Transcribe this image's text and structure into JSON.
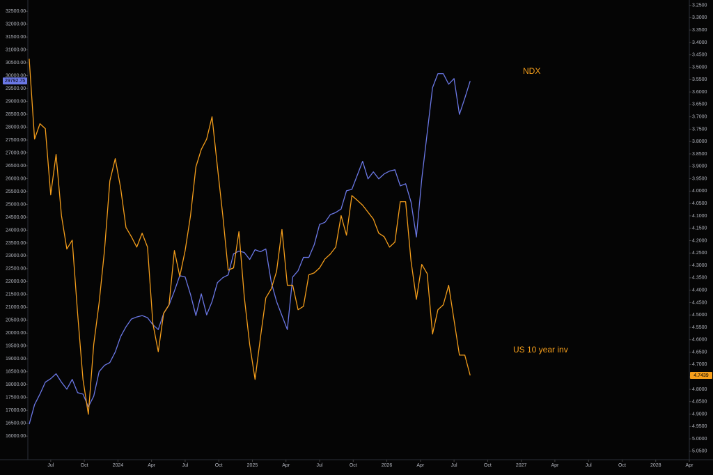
{
  "chart_data": {
    "type": "line",
    "x": [
      2023.34,
      2023.38,
      2023.42,
      2023.46,
      2023.5,
      2023.54,
      2023.58,
      2023.62,
      2023.66,
      2023.7,
      2023.74,
      2023.78,
      2023.82,
      2023.86,
      2023.9,
      2023.94,
      2023.98,
      2024.02,
      2024.06,
      2024.1,
      2024.14,
      2024.18,
      2024.22,
      2024.26,
      2024.3,
      2024.34,
      2024.38,
      2024.42,
      2024.46,
      2024.5,
      2024.54,
      2024.58,
      2024.62,
      2024.66,
      2024.7,
      2024.74,
      2024.78,
      2024.82,
      2024.86,
      2024.9,
      2024.94,
      2024.98,
      2025.02,
      2025.06,
      2025.1,
      2025.14,
      2025.18,
      2025.22,
      2025.26,
      2025.3,
      2025.34,
      2025.38,
      2025.42,
      2025.46,
      2025.5,
      2025.54,
      2025.58,
      2025.62,
      2025.66,
      2025.7,
      2025.74,
      2025.78,
      2025.82,
      2025.86,
      2025.9,
      2025.94,
      2025.98,
      2026.02,
      2026.06,
      2026.1,
      2026.14,
      2026.18,
      2026.22,
      2026.26,
      2026.3,
      2026.34,
      2026.38,
      2026.42,
      2026.46,
      2026.5,
      2026.54,
      2026.58,
      2026.62
    ],
    "series": [
      {
        "name": "NDX",
        "color": "#6b78e6",
        "axis": "y",
        "values": [
          16462,
          17224,
          17632,
          18095,
          18231,
          18422,
          18095,
          17823,
          18204,
          17687,
          17632,
          17142,
          17551,
          18504,
          18749,
          18858,
          19266,
          19865,
          20246,
          20546,
          20628,
          20682,
          20600,
          20328,
          20138,
          20764,
          21091,
          21635,
          22234,
          22180,
          21499,
          20682,
          21526,
          20709,
          21227,
          21962,
          22153,
          22262,
          23078,
          23187,
          23133,
          22861,
          23242,
          23160,
          23269,
          21989,
          21227,
          20682,
          20138,
          22180,
          22425,
          22942,
          22942,
          23432,
          24222,
          24304,
          24603,
          24685,
          24821,
          25529,
          25584,
          26128,
          26673,
          25992,
          26264,
          25992,
          26183,
          26292,
          26346,
          25720,
          25801,
          25093,
          23732,
          25992,
          27762,
          29532,
          30077,
          30077,
          29668,
          29886,
          28497,
          29123,
          29792.75
        ]
      },
      {
        "name": "US 10 year inv",
        "color": "#f59e1b",
        "axis": "y2",
        "values": [
          3.466,
          3.79,
          3.728,
          3.748,
          4.015,
          3.852,
          4.099,
          4.234,
          4.198,
          4.493,
          4.76,
          4.901,
          4.619,
          4.451,
          4.24,
          3.959,
          3.869,
          3.987,
          4.147,
          4.184,
          4.226,
          4.17,
          4.226,
          4.535,
          4.648,
          4.493,
          4.459,
          4.24,
          4.344,
          4.24,
          4.099,
          3.902,
          3.832,
          3.79,
          3.7,
          3.902,
          4.099,
          4.319,
          4.31,
          4.164,
          4.428,
          4.619,
          4.76,
          4.591,
          4.431,
          4.395,
          4.324,
          4.155,
          4.38,
          4.38,
          4.479,
          4.465,
          4.338,
          4.33,
          4.31,
          4.274,
          4.254,
          4.226,
          4.099,
          4.178,
          4.018,
          4.037,
          4.057,
          4.085,
          4.113,
          4.17,
          4.184,
          4.226,
          4.206,
          4.043,
          4.043,
          4.282,
          4.437,
          4.296,
          4.333,
          4.577,
          4.479,
          4.459,
          4.38,
          4.521,
          4.662,
          4.662,
          4.7439
        ]
      }
    ],
    "xlim": [
      2023.33,
      2028.25
    ],
    "xticks": [
      {
        "value": 2023.5,
        "label": "Jul"
      },
      {
        "value": 2023.75,
        "label": "Oct"
      },
      2024,
      {
        "value": 2024.25,
        "label": "Apr"
      },
      {
        "value": 2024.5,
        "label": "Jul"
      },
      {
        "value": 2024.75,
        "label": "Oct"
      },
      2025,
      {
        "value": 2025.25,
        "label": "Apr"
      },
      {
        "value": 2025.5,
        "label": "Jul"
      },
      {
        "value": 2025.75,
        "label": "Oct"
      },
      2026,
      {
        "value": 2026.25,
        "label": "Apr"
      },
      {
        "value": 2026.5,
        "label": "Jul"
      },
      {
        "value": 2026.75,
        "label": "Oct"
      },
      2027,
      {
        "value": 2027.25,
        "label": "Apr"
      },
      {
        "value": 2027.5,
        "label": "Jul"
      },
      {
        "value": 2027.75,
        "label": "Oct"
      },
      2028,
      {
        "value": 2028.25,
        "label": "Apr"
      }
    ],
    "ylim": [
      15220,
      32830
    ],
    "yticks": [
      {
        "value": 16000,
        "label": "16000.00"
      },
      {
        "value": 16500,
        "label": "16500.00"
      },
      {
        "value": 17000,
        "label": "17000.00"
      },
      {
        "value": 17500,
        "label": "17500.00"
      },
      {
        "value": 18000,
        "label": "18000.00"
      },
      {
        "value": 18500,
        "label": "18500.00"
      },
      {
        "value": 19000,
        "label": "19000.00"
      },
      {
        "value": 19500,
        "label": "19500.00"
      },
      {
        "value": 20000,
        "label": "20000.00"
      },
      {
        "value": 20500,
        "label": "20500.00"
      },
      {
        "value": 21000,
        "label": "21000.00"
      },
      {
        "value": 21500,
        "label": "21500.00"
      },
      {
        "value": 22000,
        "label": "22000.00"
      },
      {
        "value": 22500,
        "label": "22500.00"
      },
      {
        "value": 23000,
        "label": "23000.00"
      },
      {
        "value": 23500,
        "label": "23500.00"
      },
      {
        "value": 24000,
        "label": "24000.00"
      },
      {
        "value": 24500,
        "label": "24500.00"
      },
      {
        "value": 25000,
        "label": "25000.00"
      },
      {
        "value": 25500,
        "label": "25500.00"
      },
      {
        "value": 26000,
        "label": "26000.00"
      },
      {
        "value": 26500,
        "label": "26500.00"
      },
      {
        "value": 27000,
        "label": "27000.00"
      },
      {
        "value": 27500,
        "label": "27500.00"
      },
      {
        "value": 28000,
        "label": "28000.00"
      },
      {
        "value": 28500,
        "label": "28500.00"
      },
      {
        "value": 29000,
        "label": "29000.00"
      },
      {
        "value": 29500,
        "label": "29500.00"
      },
      {
        "value": 30000,
        "label": "30000.00"
      },
      {
        "value": 30500,
        "label": "30500.00"
      },
      {
        "value": 31000,
        "label": "31000.00"
      },
      {
        "value": 31500,
        "label": "31500.00"
      },
      {
        "value": 32000,
        "label": "32000.00"
      },
      {
        "value": 32500,
        "label": "32500.00"
      }
    ],
    "y2lim": [
      5.07,
      3.24
    ],
    "y2ticks": [
      {
        "value": 3.25,
        "label": "3.2500"
      },
      {
        "value": 3.3,
        "label": "3.3000"
      },
      {
        "value": 3.35,
        "label": "3.3500"
      },
      {
        "value": 3.4,
        "label": "3.4000"
      },
      {
        "value": 3.45,
        "label": "3.4500"
      },
      {
        "value": 3.5,
        "label": "3.5000"
      },
      {
        "value": 3.55,
        "label": "3.5500"
      },
      {
        "value": 3.6,
        "label": "3.6000"
      },
      {
        "value": 3.65,
        "label": "3.6500"
      },
      {
        "value": 3.7,
        "label": "3.7000"
      },
      {
        "value": 3.75,
        "label": "3.7500"
      },
      {
        "value": 3.8,
        "label": "3.8000"
      },
      {
        "value": 3.85,
        "label": "3.8500"
      },
      {
        "value": 3.9,
        "label": "3.9000"
      },
      {
        "value": 3.95,
        "label": "3.9500"
      },
      {
        "value": 4.0,
        "label": "4.0000"
      },
      {
        "value": 4.05,
        "label": "4.0500"
      },
      {
        "value": 4.1,
        "label": "4.1000"
      },
      {
        "value": 4.15,
        "label": "4.1500"
      },
      {
        "value": 4.2,
        "label": "4.2000"
      },
      {
        "value": 4.25,
        "label": "4.2500"
      },
      {
        "value": 4.3,
        "label": "4.3000"
      },
      {
        "value": 4.35,
        "label": "4.3500"
      },
      {
        "value": 4.4,
        "label": "4.4000"
      },
      {
        "value": 4.45,
        "label": "4.4500"
      },
      {
        "value": 4.5,
        "label": "4.5000"
      },
      {
        "value": 4.55,
        "label": "4.5500"
      },
      {
        "value": 4.6,
        "label": "4.6000"
      },
      {
        "value": 4.65,
        "label": "4.6500"
      },
      {
        "value": 4.7,
        "label": "4.7000"
      },
      {
        "value": 4.75,
        "label": "4.7500"
      },
      {
        "value": 4.8,
        "label": "4.8000"
      },
      {
        "value": 4.85,
        "label": "4.8500"
      },
      {
        "value": 4.9,
        "label": "4.9000"
      },
      {
        "value": 4.95,
        "label": "4.9500"
      },
      {
        "value": 5.0,
        "label": "5.0000"
      },
      {
        "value": 5.05,
        "label": "5.0500"
      }
    ],
    "grid": false
  }
}
